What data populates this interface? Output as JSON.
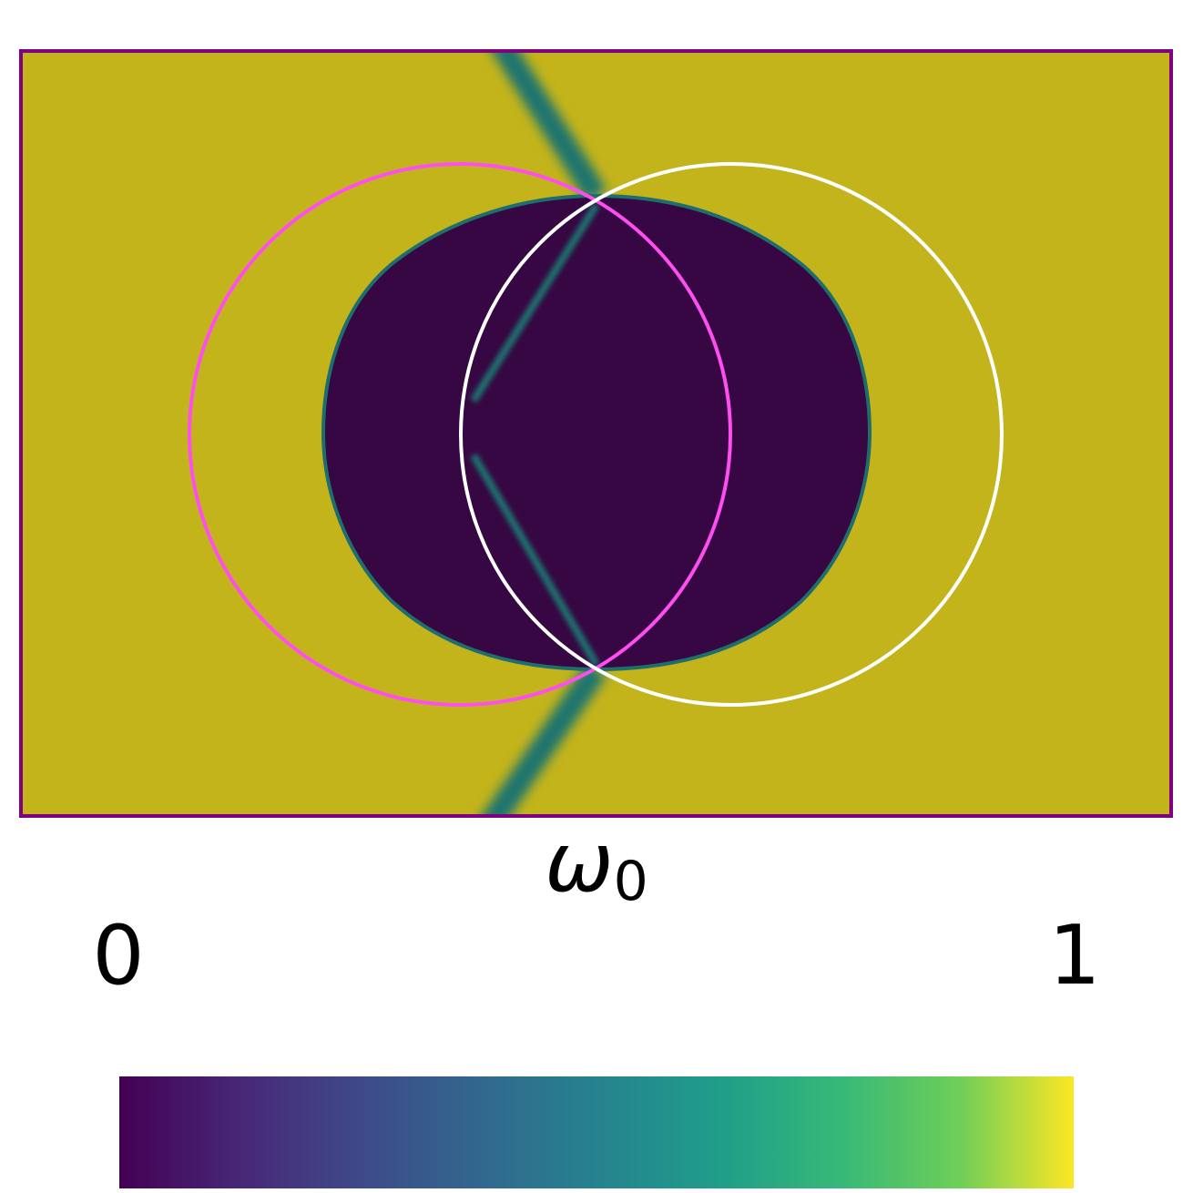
{
  "colorbar": {
    "title": "ω",
    "title_subscript": "0",
    "min_label": "0",
    "max_label": "1"
  }
}
